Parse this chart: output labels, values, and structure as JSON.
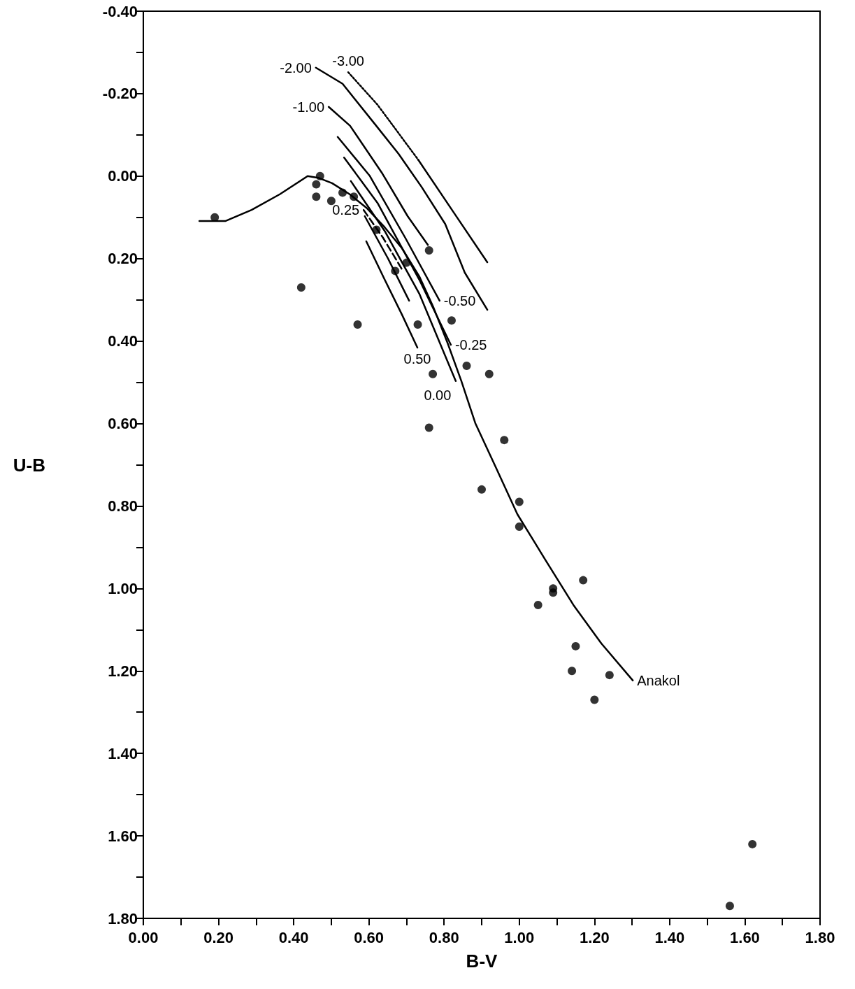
{
  "chart_data": {
    "type": "scatter",
    "xlabel": "B-V",
    "ylabel": "U-B",
    "grid": false,
    "legend": false,
    "xlim": [
      0,
      1.8
    ],
    "ylim": [
      1.8,
      -0.4
    ],
    "xticks": [
      {
        "value": 0,
        "label": "0.00"
      },
      {
        "value": 0.1,
        "label": null
      },
      {
        "value": 0.2,
        "label": "0.20"
      },
      {
        "value": 0.3,
        "label": null
      },
      {
        "value": 0.4,
        "label": "0.40"
      },
      {
        "value": 0.5,
        "label": null
      },
      {
        "value": 0.6,
        "label": "0.60"
      },
      {
        "value": 0.7,
        "label": null
      },
      {
        "value": 0.8,
        "label": "0.80"
      },
      {
        "value": 0.9,
        "label": null
      },
      {
        "value": 1.0,
        "label": "1.00"
      },
      {
        "value": 1.1,
        "label": null
      },
      {
        "value": 1.2,
        "label": "1.20"
      },
      {
        "value": 1.3,
        "label": null
      },
      {
        "value": 1.4,
        "label": "1.40"
      },
      {
        "value": 1.5,
        "label": null
      },
      {
        "value": 1.6,
        "label": "1.60"
      },
      {
        "value": 1.7,
        "label": null
      },
      {
        "value": 1.8,
        "label": "1.80"
      }
    ],
    "yticks": [
      {
        "value": -0.4,
        "label": "-0.40"
      },
      {
        "value": -0.3,
        "label": null
      },
      {
        "value": -0.2,
        "label": "-0.20"
      },
      {
        "value": -0.1,
        "label": null
      },
      {
        "value": 0,
        "label": "0.00"
      },
      {
        "value": 0.1,
        "label": null
      },
      {
        "value": 0.2,
        "label": "0.20"
      },
      {
        "value": 0.3,
        "label": null
      },
      {
        "value": 0.4,
        "label": "0.40"
      },
      {
        "value": 0.5,
        "label": null
      },
      {
        "value": 0.6,
        "label": "0.60"
      },
      {
        "value": 0.7,
        "label": null
      },
      {
        "value": 0.8,
        "label": "0.80"
      },
      {
        "value": 0.9,
        "label": null
      },
      {
        "value": 1.0,
        "label": "1.00"
      },
      {
        "value": 1.1,
        "label": null
      },
      {
        "value": 1.2,
        "label": "1.20"
      },
      {
        "value": 1.3,
        "label": null
      },
      {
        "value": 1.4,
        "label": "1.40"
      },
      {
        "value": 1.5,
        "label": null
      },
      {
        "value": 1.6,
        "label": "1.60"
      },
      {
        "value": 1.7,
        "label": null
      },
      {
        "value": 1.8,
        "label": "1.80"
      }
    ],
    "series": [
      {
        "marker": "circle",
        "color": "#000000",
        "x": [
          0.19,
          0.47,
          0.46,
          0.46,
          0.5,
          0.53,
          0.56,
          0.62,
          0.7,
          0.67,
          0.76,
          0.42,
          0.57,
          0.73,
          0.82,
          0.77,
          0.86,
          0.92,
          0.76,
          0.96,
          0.9,
          1.0,
          1.0,
          1.17,
          1.09,
          1.09,
          1.05,
          1.15,
          1.14,
          1.24,
          1.2,
          1.62,
          1.56
        ],
        "values": [
          0.1,
          0.0,
          0.02,
          0.05,
          0.06,
          0.04,
          0.05,
          0.13,
          0.21,
          0.23,
          0.18,
          0.27,
          0.36,
          0.36,
          0.35,
          0.48,
          0.46,
          0.48,
          0.61,
          0.64,
          0.76,
          0.79,
          0.85,
          0.98,
          1.0,
          1.01,
          1.04,
          1.14,
          1.2,
          1.21,
          1.27,
          1.62,
          1.77
        ]
      },
      {
        "type": "line",
        "name": "Anakol",
        "marker": "none",
        "line_style": "solid",
        "color": "#000000",
        "x": [
          0.149,
          0.218,
          0.288,
          0.363,
          0.437,
          0.465,
          0.502,
          0.549,
          0.595,
          0.642,
          0.688,
          0.734,
          0.772,
          0.809,
          0.846,
          0.883,
          0.939,
          0.995,
          1.069,
          1.144,
          1.218,
          1.302
        ],
        "values": [
          0.109,
          0.109,
          0.082,
          0.044,
          0.0,
          0.004,
          0.017,
          0.044,
          0.078,
          0.124,
          0.175,
          0.243,
          0.319,
          0.404,
          0.497,
          0.599,
          0.709,
          0.82,
          0.93,
          1.04,
          1.133,
          1.223
        ]
      },
      {
        "type": "line",
        "name": "-3.00",
        "marker": "none",
        "line_style": "dotted",
        "color": "#000000",
        "x": [
          0.545,
          0.623,
          0.731
        ],
        "values": [
          -0.252,
          -0.173,
          -0.04
        ]
      },
      {
        "type": "line",
        "marker": "none",
        "line_style": "solid",
        "color": "#000000",
        "x": [
          0.731,
          0.827,
          0.915
        ],
        "values": [
          -0.04,
          0.09,
          0.209
        ]
      },
      {
        "type": "line",
        "name": "-2.00",
        "marker": "none",
        "line_style": "solid",
        "color": "#000000",
        "x": [
          0.459,
          0.53,
          0.617,
          0.679,
          0.74,
          0.803,
          0.855,
          0.915
        ],
        "values": [
          -0.263,
          -0.224,
          -0.125,
          -0.054,
          0.026,
          0.116,
          0.234,
          0.324
        ]
      },
      {
        "type": "line",
        "name": "-1.00",
        "marker": "none",
        "line_style": "solid",
        "color": "#000000",
        "x": [
          0.493,
          0.55,
          0.636,
          0.703,
          0.757
        ],
        "values": [
          -0.168,
          -0.122,
          -0.006,
          0.097,
          0.167
        ]
      },
      {
        "type": "line",
        "name": "-0.50",
        "marker": "none",
        "line_style": "solid",
        "color": "#000000",
        "x": [
          0.517,
          0.602,
          0.697,
          0.788
        ],
        "values": [
          -0.095,
          -0.001,
          0.15,
          0.302
        ]
      },
      {
        "type": "line",
        "name": "-0.25",
        "marker": "none",
        "line_style": "solid",
        "color": "#000000",
        "x": [
          0.534,
          0.623,
          0.734,
          0.818
        ],
        "values": [
          -0.045,
          0.065,
          0.251,
          0.409
        ]
      },
      {
        "type": "line",
        "name": "0.00",
        "marker": "none",
        "line_style": "solid",
        "color": "#000000",
        "x": [
          0.552,
          0.642,
          0.734,
          0.831
        ],
        "values": [
          0.012,
          0.133,
          0.285,
          0.497
        ]
      },
      {
        "type": "line",
        "marker": "none",
        "line_style": "solid",
        "color": "#000000",
        "x": [
          0.589,
          0.651,
          0.707
        ],
        "values": [
          0.097,
          0.2,
          0.302
        ]
      },
      {
        "type": "line",
        "name": "0.25",
        "marker": "none",
        "line_style": "dashed",
        "color": "#000000",
        "x": [
          0.586,
          0.638,
          0.688
        ],
        "values": [
          0.082,
          0.15,
          0.226
        ]
      },
      {
        "type": "line",
        "name": "0.50",
        "marker": "none",
        "line_style": "solid",
        "color": "#000000",
        "x": [
          0.593,
          0.642,
          0.688,
          0.729
        ],
        "values": [
          0.158,
          0.251,
          0.336,
          0.416
        ]
      }
    ]
  }
}
